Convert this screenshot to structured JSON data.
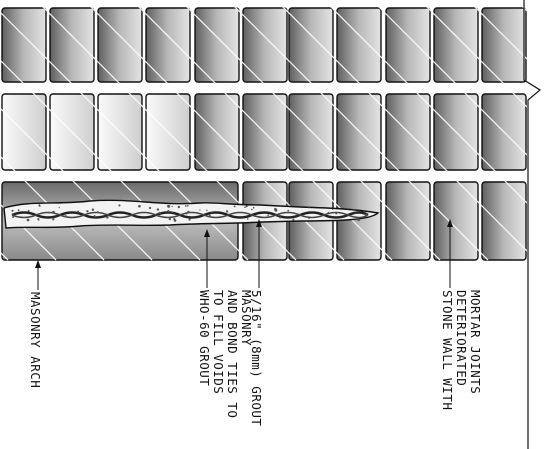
{
  "diagram": {
    "title": "",
    "labels": {
      "masonry_arch": "MASONRY ARCH",
      "grout_lines": [
        "WHO-60 GROUT",
        "TO FILL VOIDS",
        "AND BOND TIES TO",
        "MASONRY"
      ],
      "tie": "5/16\" (8mm) GROUT",
      "wall_lines": [
        "STONE WALL WITH",
        "DETERIORATED",
        "MORTAR JOINTS"
      ]
    },
    "colors": {
      "stone_dark": "#6e6e6e",
      "stone_mid": "#a6a6a6",
      "stone_light": "#e9e9e9",
      "grout_fill": "#f2f2f2",
      "line": "#111111"
    }
  }
}
